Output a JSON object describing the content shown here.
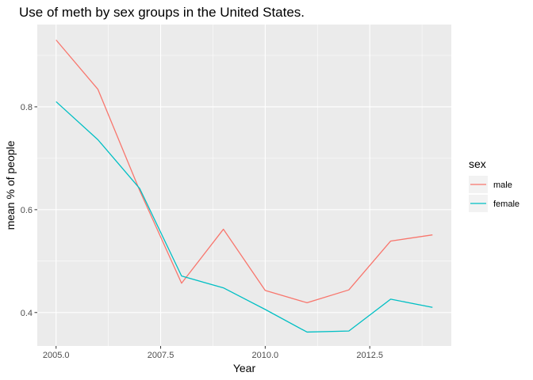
{
  "chart_data": {
    "type": "line",
    "title": "Use of meth by sex groups in the United States.",
    "xlabel": "Year",
    "ylabel": "mean % of people",
    "x": [
      2005,
      2006,
      2007,
      2008,
      2009,
      2010,
      2011,
      2012,
      2013,
      2014
    ],
    "xlim": [
      2004.55,
      2014.45
    ],
    "ylim": [
      0.335,
      0.96
    ],
    "x_ticks": [
      2005.0,
      2007.5,
      2010.0,
      2012.5
    ],
    "x_tick_labels": [
      "2005.0",
      "2007.5",
      "2010.0",
      "2012.5"
    ],
    "y_ticks": [
      0.4,
      0.6,
      0.8
    ],
    "y_tick_labels": [
      "0.4",
      "0.6",
      "0.8"
    ],
    "grid": true,
    "legend": {
      "title": "sex",
      "position": "right"
    },
    "series": [
      {
        "name": "male",
        "color": "#F8766D",
        "values": [
          0.93,
          0.834,
          0.637,
          0.457,
          0.562,
          0.443,
          0.419,
          0.444,
          0.539,
          0.551
        ]
      },
      {
        "name": "female",
        "color": "#00BFC4",
        "values": [
          0.81,
          0.736,
          0.641,
          0.471,
          0.448,
          0.406,
          0.362,
          0.364,
          0.426,
          0.41
        ]
      }
    ]
  }
}
